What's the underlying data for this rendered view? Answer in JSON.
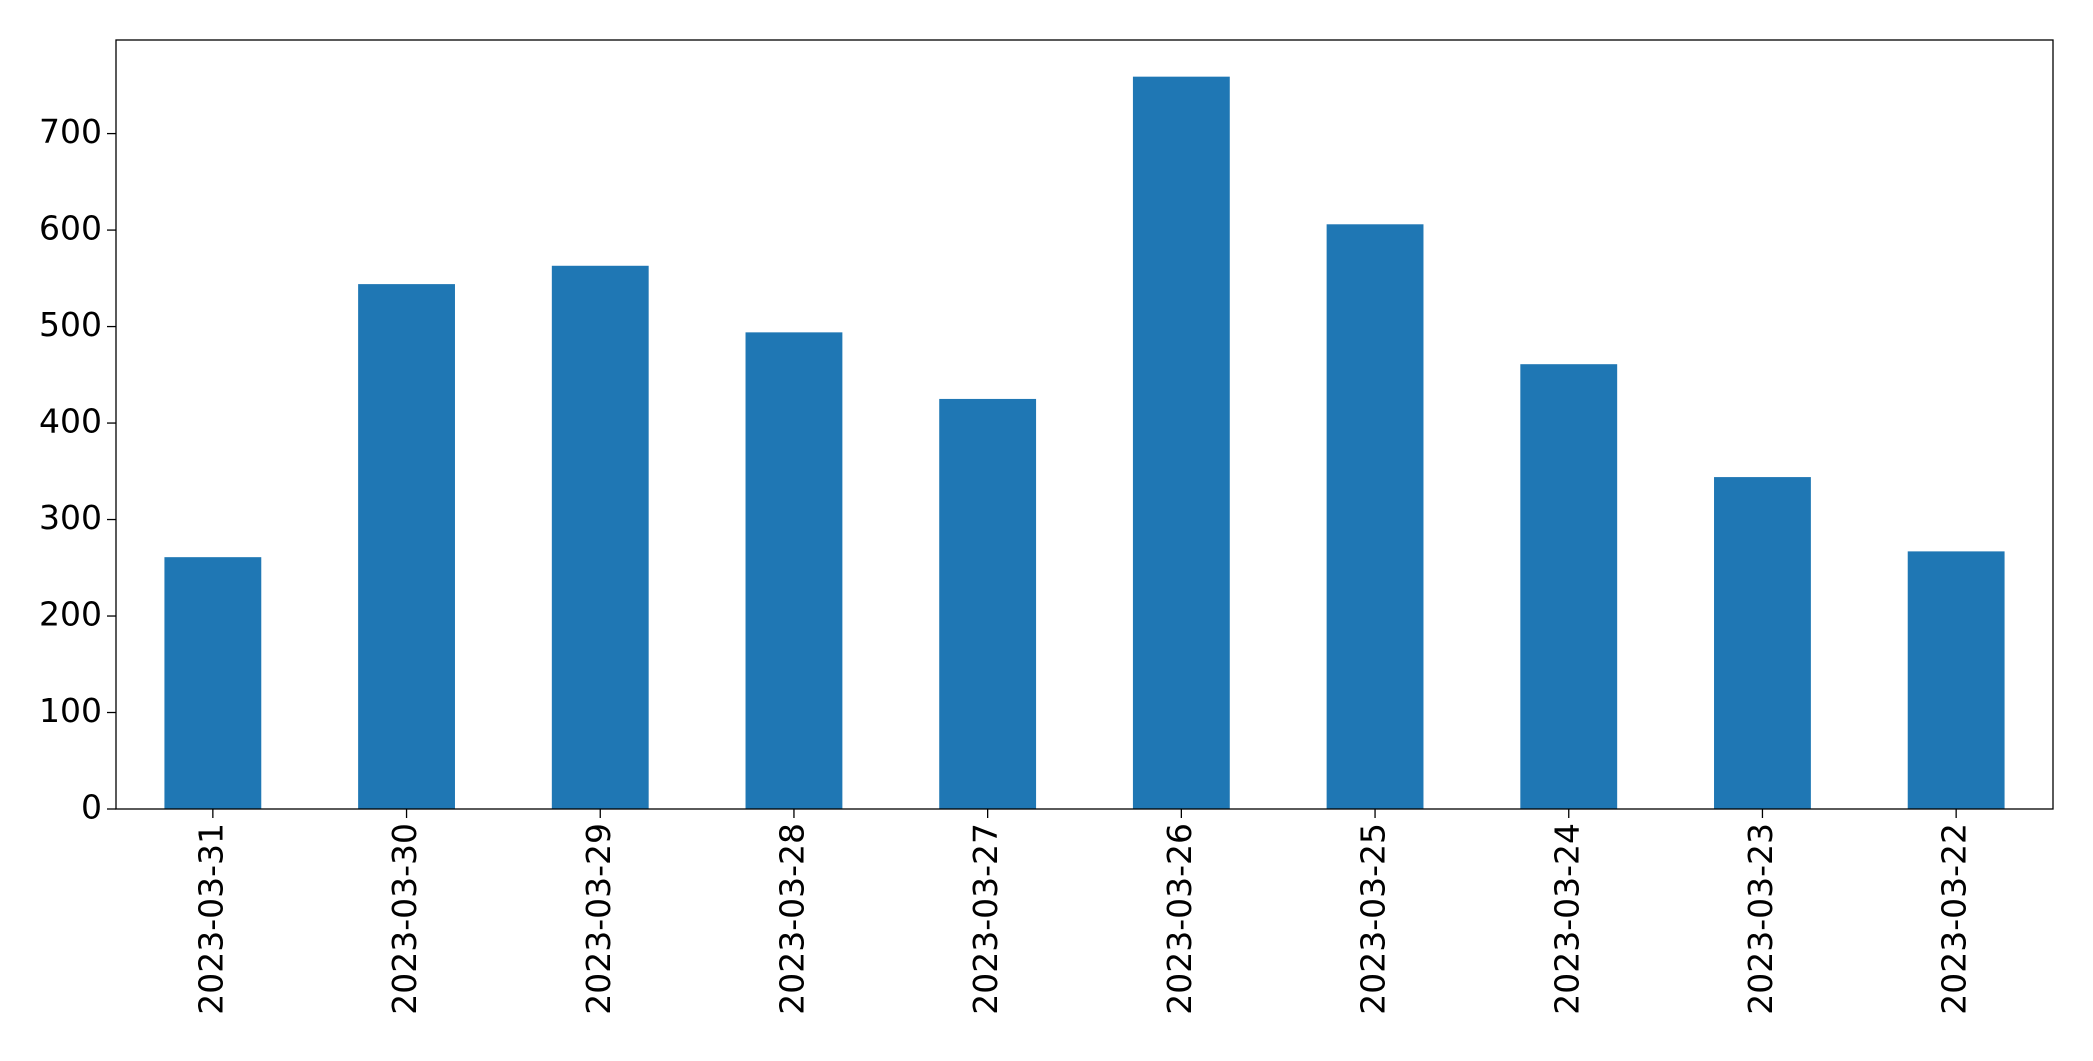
{
  "chart_data": {
    "type": "bar",
    "categories": [
      "2023-03-31",
      "2023-03-30",
      "2023-03-29",
      "2023-03-28",
      "2023-03-27",
      "2023-03-26",
      "2023-03-25",
      "2023-03-24",
      "2023-03-23",
      "2023-03-22"
    ],
    "values": [
      261,
      544,
      563,
      494,
      425,
      759,
      606,
      461,
      344,
      267
    ],
    "color": "#1f77b4",
    "ylim": [
      0,
      797
    ],
    "yticks": [
      0,
      100,
      200,
      300,
      400,
      500,
      600,
      700
    ],
    "grid": false
  }
}
